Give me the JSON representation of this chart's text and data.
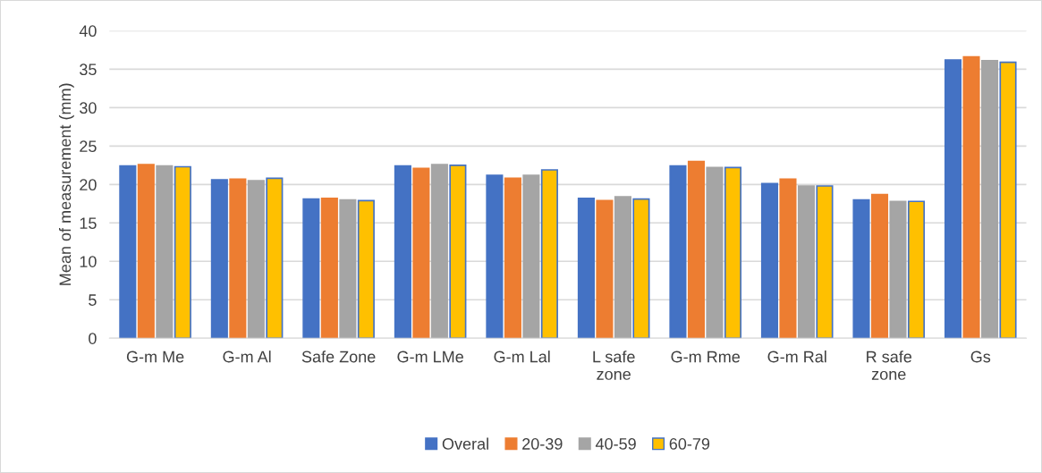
{
  "chart_data": {
    "type": "bar",
    "ylabel": "Mean of measurement (mm)",
    "categories": [
      "G-m Me",
      "G-m Al",
      "Safe Zone",
      "G-m LMe",
      "G-m Lal",
      "L safe zone",
      "G-m Rme",
      "G-m Ral",
      "R safe zone",
      "Gs"
    ],
    "series": [
      {
        "name": "Overal",
        "color": "#4472c4",
        "values": [
          22.4,
          20.6,
          18.1,
          22.4,
          21.2,
          18.2,
          22.4,
          20.1,
          18.0,
          36.2
        ]
      },
      {
        "name": "20-39",
        "color": "#ed7d31",
        "values": [
          22.6,
          20.7,
          18.2,
          22.1,
          20.8,
          17.9,
          23.0,
          20.7,
          18.7,
          36.6
        ]
      },
      {
        "name": "40-59",
        "color": "#a5a5a5",
        "values": [
          22.4,
          20.5,
          18.0,
          22.6,
          21.2,
          18.4,
          22.2,
          19.8,
          17.8,
          36.1
        ]
      },
      {
        "name": "60-79",
        "color": "#ffc000",
        "values": [
          22.3,
          20.8,
          17.9,
          22.5,
          21.9,
          18.1,
          22.2,
          19.8,
          17.8,
          35.9
        ]
      }
    ],
    "ylim": [
      0,
      40
    ],
    "yticks": [
      0,
      5,
      10,
      15,
      20,
      25,
      30,
      35,
      40
    ],
    "grid": "y",
    "legend": "bottom"
  }
}
